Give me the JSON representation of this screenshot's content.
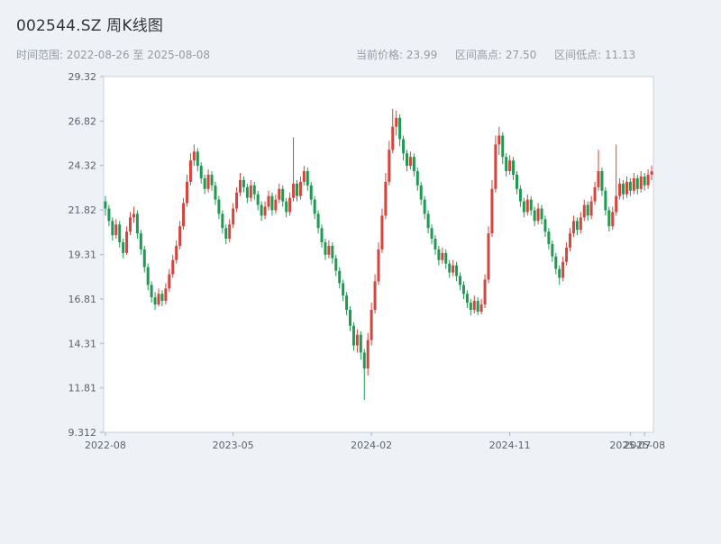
{
  "header": {
    "title": "002544.SZ 周K线图"
  },
  "subheader": {
    "range_label": "时间范围: 2022-08-26 至 2025-08-08",
    "current_price_label": "当前价格: 23.99",
    "range_high_label": "区间高点: 27.50",
    "range_low_label": "区间低点: 11.13"
  },
  "chart_data": {
    "type": "candlestick",
    "title": "002544.SZ 周K线图",
    "interval": "weekly",
    "start_date": "2022-08-26",
    "end_date": "2025-08-08",
    "current_price": 23.99,
    "range_high": 27.5,
    "range_low": 11.13,
    "ylim": [
      9.312,
      29.32
    ],
    "y_ticks": [
      29.32,
      26.82,
      24.32,
      21.82,
      19.31,
      16.81,
      14.31,
      11.81,
      9.312
    ],
    "x_ticks": [
      {
        "index": 0,
        "label": "2022-08"
      },
      {
        "index": 36,
        "label": "2023-05"
      },
      {
        "index": 75,
        "label": "2024-02"
      },
      {
        "index": 114,
        "label": "2024-11"
      },
      {
        "index": 148,
        "label": "2025-07"
      },
      {
        "index": 152,
        "label": "2025-08"
      }
    ],
    "colors": {
      "up": "#d6453d",
      "down": "#1f9a54"
    },
    "candles_format": [
      "open",
      "high",
      "low",
      "close"
    ],
    "candles": [
      [
        22.3,
        22.6,
        21.5,
        21.9
      ],
      [
        21.9,
        22.1,
        20.9,
        21.2
      ],
      [
        21.2,
        21.4,
        20.1,
        20.4
      ],
      [
        20.4,
        21.3,
        20.2,
        21.0
      ],
      [
        21.0,
        21.2,
        19.7,
        20.0
      ],
      [
        20.0,
        20.2,
        19.1,
        19.4
      ],
      [
        19.4,
        20.9,
        19.3,
        20.6
      ],
      [
        20.6,
        21.7,
        20.4,
        21.4
      ],
      [
        21.4,
        22.0,
        21.1,
        21.6
      ],
      [
        21.6,
        21.8,
        20.2,
        20.5
      ],
      [
        20.5,
        20.7,
        19.3,
        19.6
      ],
      [
        19.6,
        19.8,
        18.3,
        18.6
      ],
      [
        18.6,
        18.8,
        17.3,
        17.6
      ],
      [
        17.6,
        17.8,
        16.6,
        16.9
      ],
      [
        16.9,
        17.2,
        16.2,
        16.5
      ],
      [
        16.5,
        17.4,
        16.4,
        17.1
      ],
      [
        17.1,
        17.3,
        16.4,
        16.7
      ],
      [
        16.7,
        17.7,
        16.5,
        17.4
      ],
      [
        17.4,
        18.5,
        17.2,
        18.2
      ],
      [
        18.2,
        19.3,
        18.0,
        19.0
      ],
      [
        19.0,
        20.1,
        18.8,
        19.8
      ],
      [
        19.8,
        21.2,
        19.6,
        20.9
      ],
      [
        20.9,
        22.5,
        20.7,
        22.2
      ],
      [
        22.2,
        23.8,
        22.0,
        23.4
      ],
      [
        23.4,
        25.0,
        23.2,
        24.6
      ],
      [
        24.6,
        25.5,
        24.3,
        25.1
      ],
      [
        25.1,
        25.3,
        24.0,
        24.3
      ],
      [
        24.3,
        24.5,
        23.3,
        23.6
      ],
      [
        23.6,
        23.8,
        22.7,
        23.0
      ],
      [
        23.0,
        24.1,
        22.8,
        23.8
      ],
      [
        23.8,
        24.0,
        22.9,
        23.2
      ],
      [
        23.2,
        23.4,
        22.1,
        22.4
      ],
      [
        22.4,
        22.6,
        21.3,
        21.6
      ],
      [
        21.6,
        21.8,
        20.5,
        20.8
      ],
      [
        20.8,
        21.0,
        19.9,
        20.2
      ],
      [
        20.2,
        21.3,
        20.0,
        21.0
      ],
      [
        21.0,
        22.2,
        20.8,
        21.9
      ],
      [
        21.9,
        23.1,
        21.7,
        22.8
      ],
      [
        22.8,
        23.9,
        22.6,
        23.5
      ],
      [
        23.5,
        23.7,
        22.8,
        23.1
      ],
      [
        23.1,
        23.3,
        22.2,
        22.5
      ],
      [
        22.5,
        23.5,
        22.3,
        23.2
      ],
      [
        23.2,
        23.4,
        22.4,
        22.7
      ],
      [
        22.7,
        22.9,
        21.8,
        22.1
      ],
      [
        22.1,
        22.3,
        21.2,
        21.5
      ],
      [
        21.5,
        22.3,
        21.3,
        22.0
      ],
      [
        22.0,
        22.9,
        21.8,
        22.6
      ],
      [
        22.6,
        22.8,
        21.5,
        21.8
      ],
      [
        21.8,
        22.7,
        21.6,
        22.4
      ],
      [
        22.4,
        23.3,
        22.2,
        23.0
      ],
      [
        23.0,
        23.2,
        22.0,
        22.3
      ],
      [
        22.3,
        22.5,
        21.4,
        21.7
      ],
      [
        21.7,
        22.8,
        21.5,
        22.5
      ],
      [
        22.5,
        25.9,
        22.3,
        23.3
      ],
      [
        23.3,
        23.5,
        22.3,
        22.6
      ],
      [
        22.6,
        23.7,
        22.4,
        23.4
      ],
      [
        23.4,
        24.3,
        23.2,
        24.0
      ],
      [
        24.0,
        24.2,
        22.9,
        23.2
      ],
      [
        23.2,
        23.4,
        22.1,
        22.4
      ],
      [
        22.4,
        22.6,
        21.3,
        21.6
      ],
      [
        21.6,
        21.8,
        20.5,
        20.8
      ],
      [
        20.8,
        21.0,
        19.7,
        20.0
      ],
      [
        20.0,
        20.2,
        19.0,
        19.3
      ],
      [
        19.3,
        20.1,
        19.1,
        19.8
      ],
      [
        19.8,
        20.0,
        18.8,
        19.1
      ],
      [
        19.1,
        19.3,
        18.1,
        18.4
      ],
      [
        18.4,
        18.6,
        17.4,
        17.7
      ],
      [
        17.7,
        17.9,
        16.7,
        17.0
      ],
      [
        17.0,
        17.2,
        15.9,
        16.2
      ],
      [
        16.2,
        16.4,
        15.0,
        15.3
      ],
      [
        15.3,
        15.5,
        13.9,
        14.2
      ],
      [
        14.2,
        15.1,
        13.8,
        14.8
      ],
      [
        14.8,
        15.0,
        13.4,
        13.8
      ],
      [
        13.8,
        14.0,
        11.13,
        12.9
      ],
      [
        12.9,
        14.9,
        12.5,
        14.5
      ],
      [
        14.5,
        16.6,
        14.2,
        16.2
      ],
      [
        16.2,
        18.2,
        16.0,
        17.8
      ],
      [
        17.8,
        20.0,
        17.6,
        19.6
      ],
      [
        19.6,
        21.9,
        19.4,
        21.5
      ],
      [
        21.5,
        23.9,
        21.3,
        23.4
      ],
      [
        23.4,
        25.7,
        23.2,
        25.2
      ],
      [
        25.2,
        27.5,
        25.0,
        26.5
      ],
      [
        26.5,
        27.4,
        26.0,
        27.0
      ],
      [
        27.0,
        27.2,
        25.4,
        25.8
      ],
      [
        25.8,
        26.0,
        24.6,
        25.0
      ],
      [
        25.0,
        25.2,
        24.0,
        24.3
      ],
      [
        24.3,
        25.1,
        24.1,
        24.8
      ],
      [
        24.8,
        25.0,
        23.7,
        24.0
      ],
      [
        24.0,
        24.2,
        22.9,
        23.2
      ],
      [
        23.2,
        23.4,
        22.1,
        22.4
      ],
      [
        22.4,
        22.6,
        21.3,
        21.6
      ],
      [
        21.6,
        21.8,
        20.5,
        20.8
      ],
      [
        20.8,
        21.0,
        19.9,
        20.2
      ],
      [
        20.2,
        20.4,
        19.3,
        19.6
      ],
      [
        19.6,
        19.8,
        18.7,
        19.0
      ],
      [
        19.0,
        19.7,
        18.8,
        19.4
      ],
      [
        19.4,
        19.6,
        18.5,
        18.8
      ],
      [
        18.8,
        19.0,
        18.0,
        18.3
      ],
      [
        18.3,
        19.0,
        18.1,
        18.7
      ],
      [
        18.7,
        18.9,
        17.8,
        18.1
      ],
      [
        18.1,
        18.3,
        17.3,
        17.6
      ],
      [
        17.6,
        17.8,
        16.8,
        17.1
      ],
      [
        17.1,
        17.3,
        16.3,
        16.6
      ],
      [
        16.6,
        16.8,
        15.9,
        16.2
      ],
      [
        16.2,
        17.0,
        16.0,
        16.7
      ],
      [
        16.7,
        16.9,
        15.9,
        16.1
      ],
      [
        16.1,
        16.8,
        15.95,
        16.5
      ],
      [
        16.5,
        18.2,
        16.3,
        17.9
      ],
      [
        17.9,
        20.9,
        17.7,
        20.5
      ],
      [
        20.5,
        23.5,
        20.3,
        23.0
      ],
      [
        23.0,
        26.0,
        22.8,
        25.5
      ],
      [
        25.5,
        26.5,
        24.9,
        26.0
      ],
      [
        26.0,
        26.2,
        24.4,
        24.8
      ],
      [
        24.8,
        25.0,
        23.7,
        24.0
      ],
      [
        24.0,
        24.9,
        23.8,
        24.6
      ],
      [
        24.6,
        24.8,
        23.5,
        23.8
      ],
      [
        23.8,
        24.0,
        22.7,
        23.0
      ],
      [
        23.0,
        23.2,
        22.0,
        22.3
      ],
      [
        22.3,
        22.5,
        21.4,
        21.7
      ],
      [
        21.7,
        22.7,
        21.5,
        22.4
      ],
      [
        22.4,
        22.6,
        21.5,
        21.8
      ],
      [
        21.8,
        22.0,
        20.9,
        21.2
      ],
      [
        21.2,
        22.2,
        21.0,
        21.9
      ],
      [
        21.9,
        22.1,
        21.0,
        21.3
      ],
      [
        21.3,
        21.5,
        20.3,
        20.6
      ],
      [
        20.6,
        20.8,
        19.6,
        19.9
      ],
      [
        19.9,
        20.1,
        18.9,
        19.2
      ],
      [
        19.2,
        19.4,
        18.2,
        18.5
      ],
      [
        18.5,
        18.7,
        17.6,
        18.0
      ],
      [
        18.0,
        19.2,
        17.8,
        18.9
      ],
      [
        18.9,
        20.0,
        18.7,
        19.7
      ],
      [
        19.7,
        20.8,
        19.5,
        20.5
      ],
      [
        20.5,
        21.5,
        20.3,
        21.2
      ],
      [
        21.2,
        21.4,
        20.4,
        20.7
      ],
      [
        20.7,
        21.7,
        20.5,
        21.4
      ],
      [
        21.4,
        22.4,
        21.2,
        22.1
      ],
      [
        22.1,
        22.3,
        21.2,
        21.5
      ],
      [
        21.5,
        22.6,
        21.3,
        22.3
      ],
      [
        22.3,
        23.4,
        22.1,
        23.1
      ],
      [
        23.1,
        25.2,
        22.9,
        24.0
      ],
      [
        24.0,
        24.2,
        22.6,
        22.9
      ],
      [
        22.9,
        23.1,
        21.5,
        21.8
      ],
      [
        21.8,
        22.0,
        20.6,
        20.9
      ],
      [
        20.9,
        22.0,
        20.7,
        21.7
      ],
      [
        21.7,
        25.5,
        21.5,
        22.6
      ],
      [
        22.6,
        23.6,
        22.4,
        23.3
      ],
      [
        23.3,
        23.5,
        22.4,
        22.7
      ],
      [
        22.7,
        23.7,
        22.5,
        23.4
      ],
      [
        23.4,
        23.6,
        22.6,
        22.9
      ],
      [
        22.9,
        23.9,
        22.7,
        23.6
      ],
      [
        23.6,
        23.8,
        22.7,
        23.0
      ],
      [
        23.0,
        24.0,
        22.8,
        23.7
      ],
      [
        23.7,
        23.9,
        22.9,
        23.2
      ],
      [
        23.2,
        24.1,
        23.0,
        23.8
      ],
      [
        23.8,
        24.32,
        23.5,
        23.99
      ]
    ]
  }
}
